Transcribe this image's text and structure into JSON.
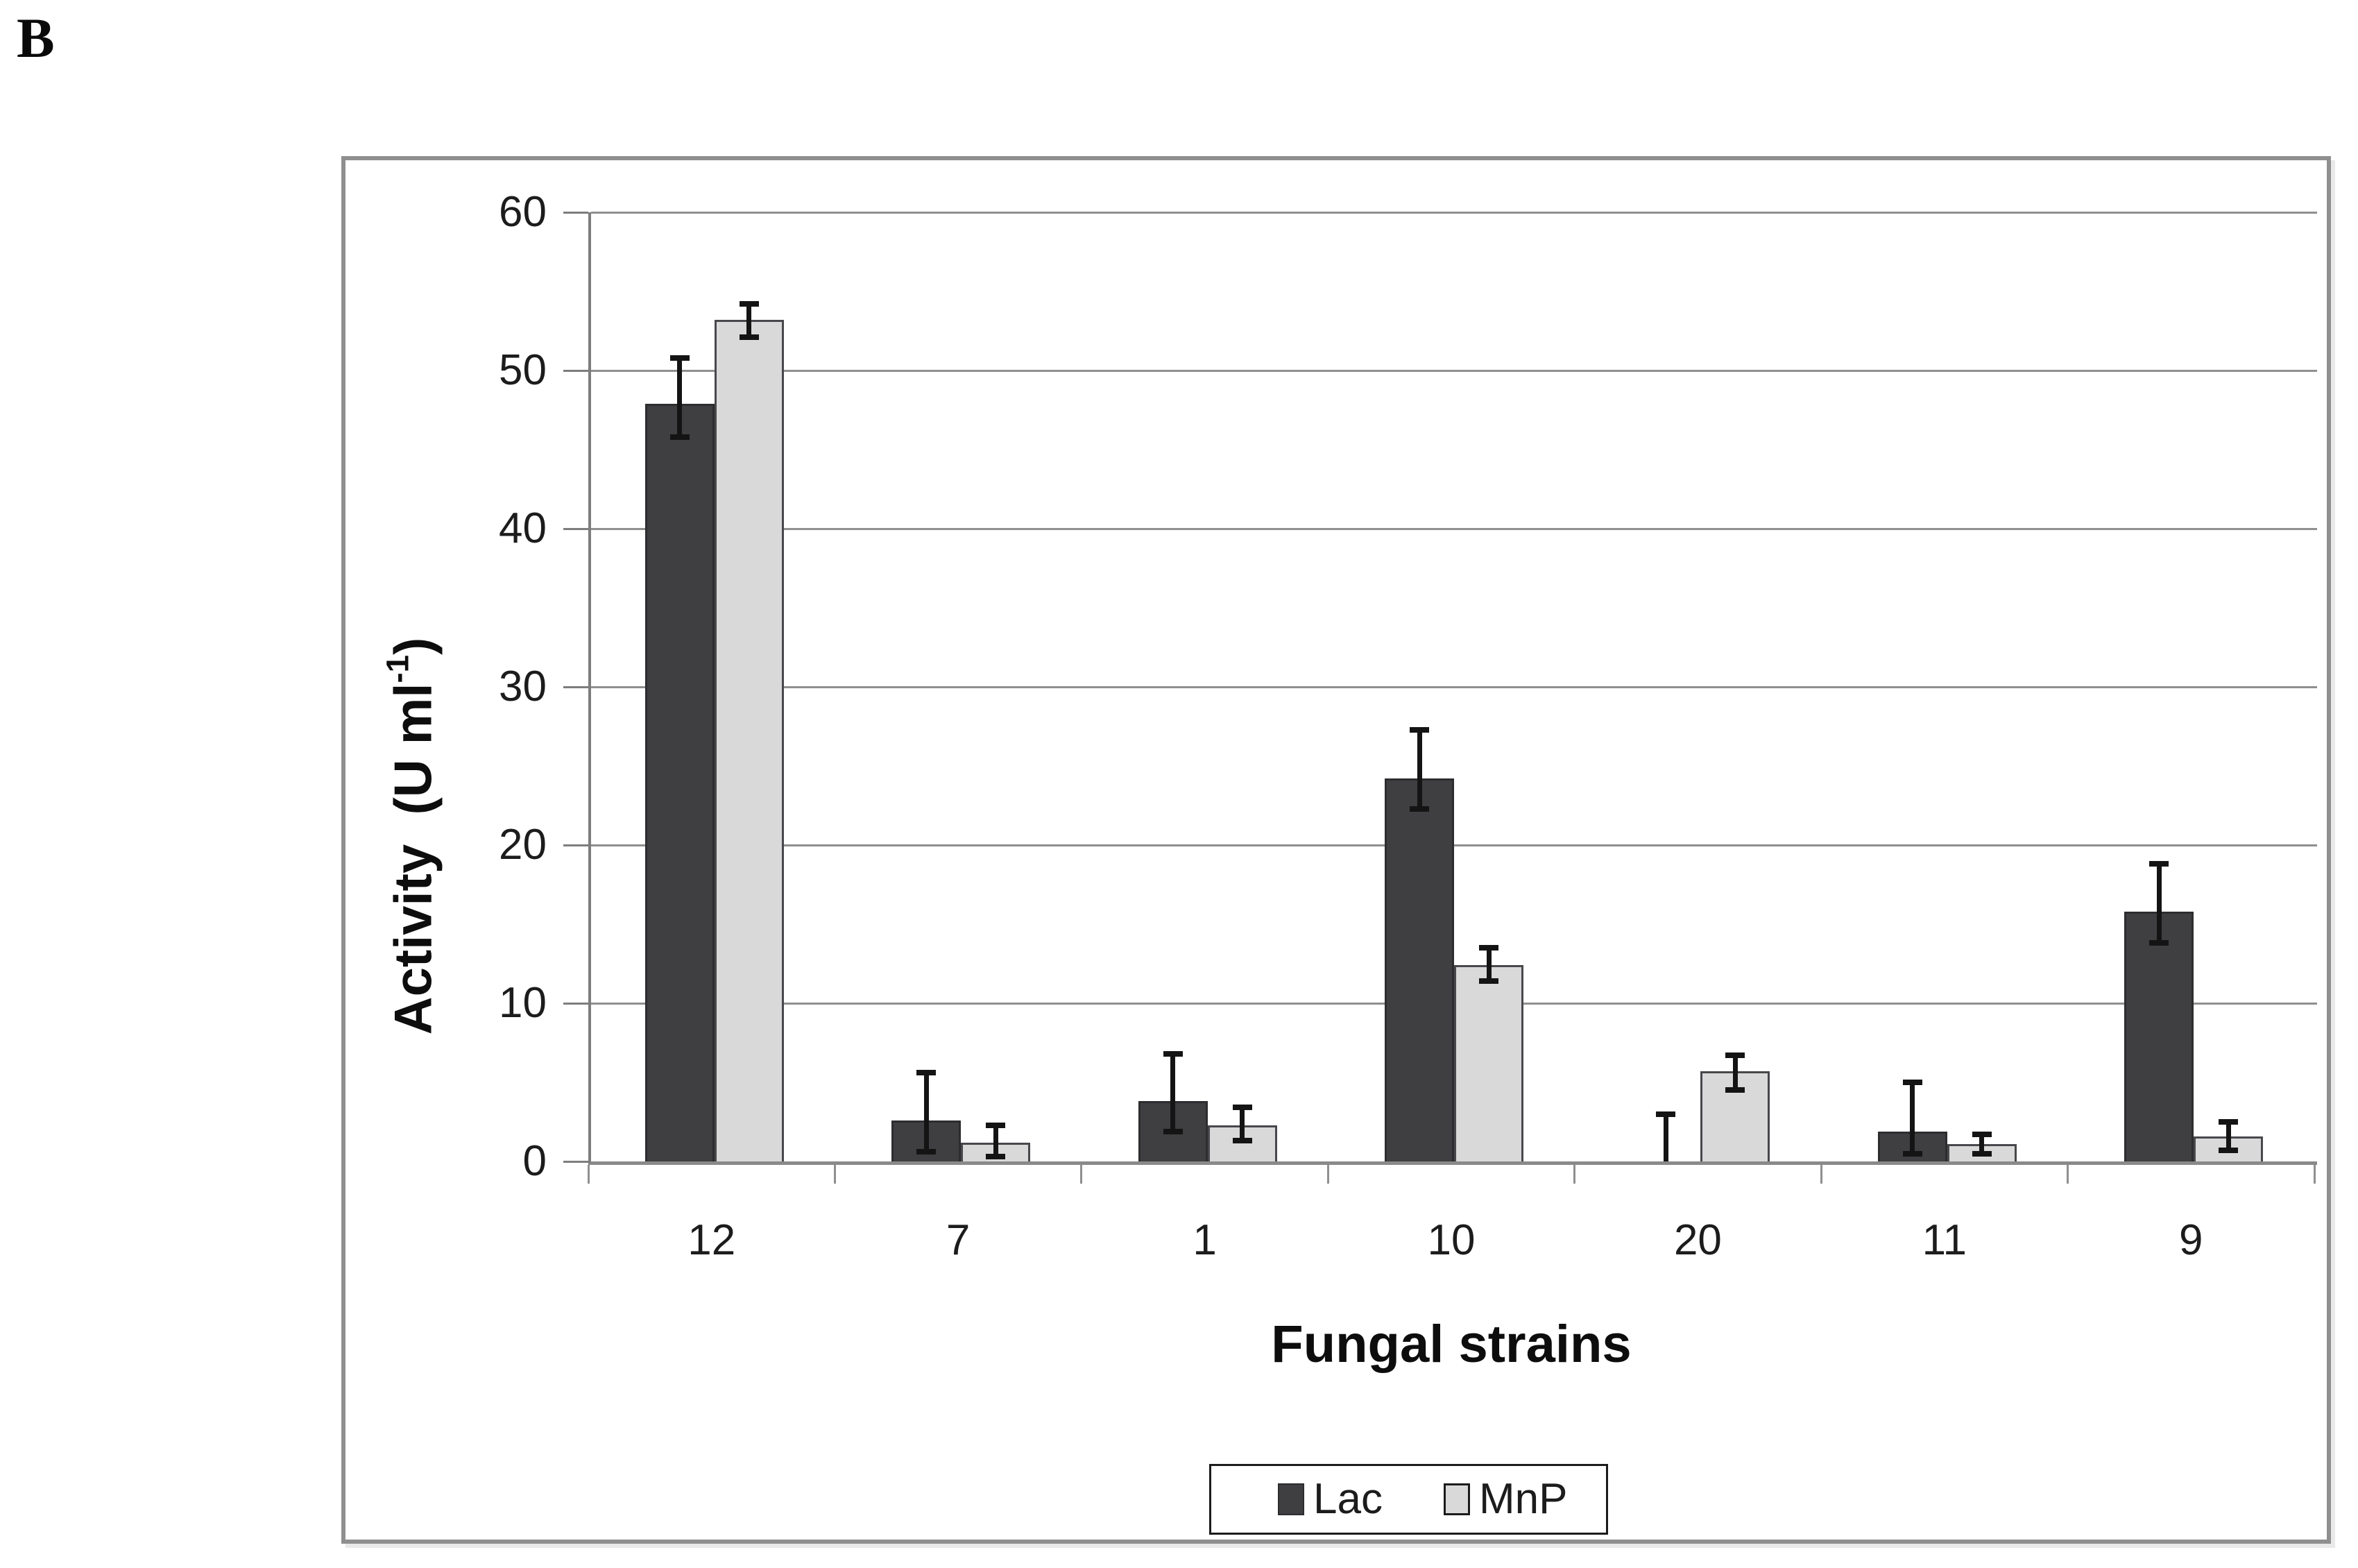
{
  "figure_label": "B",
  "y_axis": {
    "title_pre": "Activity  (U ml",
    "title_sup": "-1",
    "title_post": ")",
    "tick_values": [
      0,
      10,
      20,
      30,
      40,
      50,
      60
    ],
    "tick_labels": [
      "0",
      "10",
      "20",
      "30",
      "40",
      "50",
      "60"
    ]
  },
  "x_axis": {
    "title": "Fungal strains"
  },
  "colors": {
    "lac_fill": "#3f3f41",
    "lac_border": "#2d2d2f",
    "mnp_fill": "#d9d9d9",
    "mnp_border": "#48484c",
    "gridline": "#8f8f8f",
    "frame_border": "#8f8f8f",
    "error_bar": "#141414"
  },
  "chart_data": {
    "type": "bar",
    "title": "",
    "xlabel": "Fungal strains",
    "ylabel": "Activity (U ml-1)",
    "ylim": [
      0,
      60
    ],
    "ytick_step": 10,
    "grid": true,
    "legend_position": "bottom-center",
    "categories": [
      "12",
      "7",
      "1",
      "10",
      "20",
      "11",
      "9"
    ],
    "series": [
      {
        "name": "Lac",
        "color": "#3f3f41",
        "border_color": "#2d2d2f",
        "values": [
          47.9,
          2.6,
          3.8,
          24.2,
          0.0,
          1.9,
          15.8
        ],
        "error_low": [
          45.8,
          0.6,
          1.9,
          22.3,
          0.0,
          0.5,
          13.8
        ],
        "error_high": [
          50.8,
          5.6,
          6.8,
          27.3,
          3.0,
          5.0,
          18.8
        ]
      },
      {
        "name": "MnP",
        "color": "#d9d9d9",
        "border_color": "#48484c",
        "values": [
          53.2,
          1.2,
          2.3,
          12.4,
          5.7,
          1.1,
          1.6
        ],
        "error_low": [
          52.1,
          0.3,
          1.3,
          11.4,
          4.5,
          0.5,
          0.7
        ],
        "error_high": [
          54.2,
          2.3,
          3.4,
          13.5,
          6.7,
          1.7,
          2.5
        ]
      }
    ]
  }
}
